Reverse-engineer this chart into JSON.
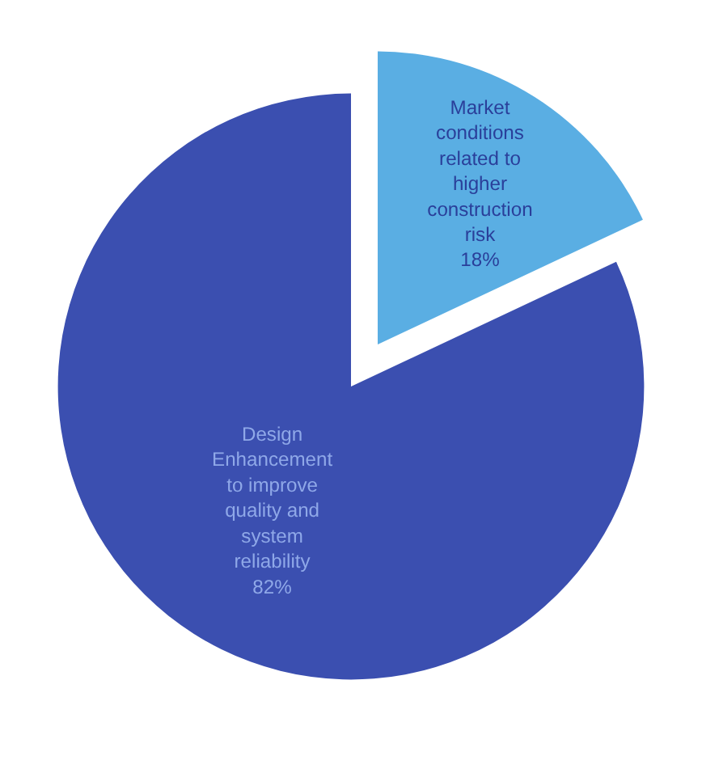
{
  "chart_data": {
    "type": "pie",
    "categories": [
      "Market conditions related to higher construction risk",
      "Design Enhancement to improve quality and system reliability"
    ],
    "values": [
      18,
      82
    ],
    "value_labels": [
      "18%",
      "82%"
    ],
    "colors": [
      "#5aaee3",
      "#3b4fb0"
    ],
    "legend": false
  }
}
